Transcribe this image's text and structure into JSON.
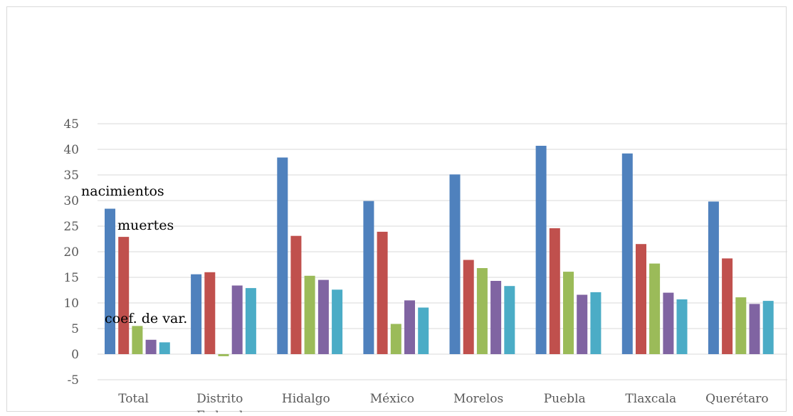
{
  "chart_data": {
    "type": "bar",
    "categories": [
      "Total",
      "Distrito Federal",
      "Hidalgo",
      "México",
      "Morelos",
      "Puebla",
      "Tlaxcala",
      "Querétaro"
    ],
    "category_lines": [
      [
        "Total"
      ],
      [
        "Distrito",
        "Federal"
      ],
      [
        "Hidalgo"
      ],
      [
        "México"
      ],
      [
        "Morelos"
      ],
      [
        "Puebla"
      ],
      [
        "Tlaxcala"
      ],
      [
        "Querétaro"
      ]
    ],
    "series": [
      {
        "color": "#4F81BD",
        "values": [
          28.4,
          15.6,
          38.4,
          29.9,
          35.1,
          40.7,
          39.2,
          29.8
        ]
      },
      {
        "color": "#C0504D",
        "values": [
          22.9,
          16.0,
          23.1,
          23.9,
          18.4,
          24.6,
          21.5,
          18.7
        ]
      },
      {
        "color": "#9BBB59",
        "values": [
          5.5,
          -0.4,
          15.3,
          5.9,
          16.8,
          16.1,
          17.7,
          11.1
        ]
      },
      {
        "color": "#8064A2",
        "values": [
          2.8,
          13.4,
          14.5,
          10.5,
          14.3,
          11.6,
          12.0,
          9.8
        ]
      },
      {
        "color": "#4BACC6",
        "values": [
          2.3,
          12.9,
          12.6,
          9.1,
          13.3,
          12.1,
          10.7,
          10.4
        ]
      }
    ],
    "annotations": [
      "nacimientos",
      "muertes",
      "coef. de var."
    ],
    "ylim": [
      -5,
      45
    ],
    "yticks": [
      -5,
      0,
      5,
      10,
      15,
      20,
      25,
      30,
      35,
      40,
      45
    ],
    "grid": true,
    "title": "",
    "xlabel": "",
    "ylabel": ""
  }
}
